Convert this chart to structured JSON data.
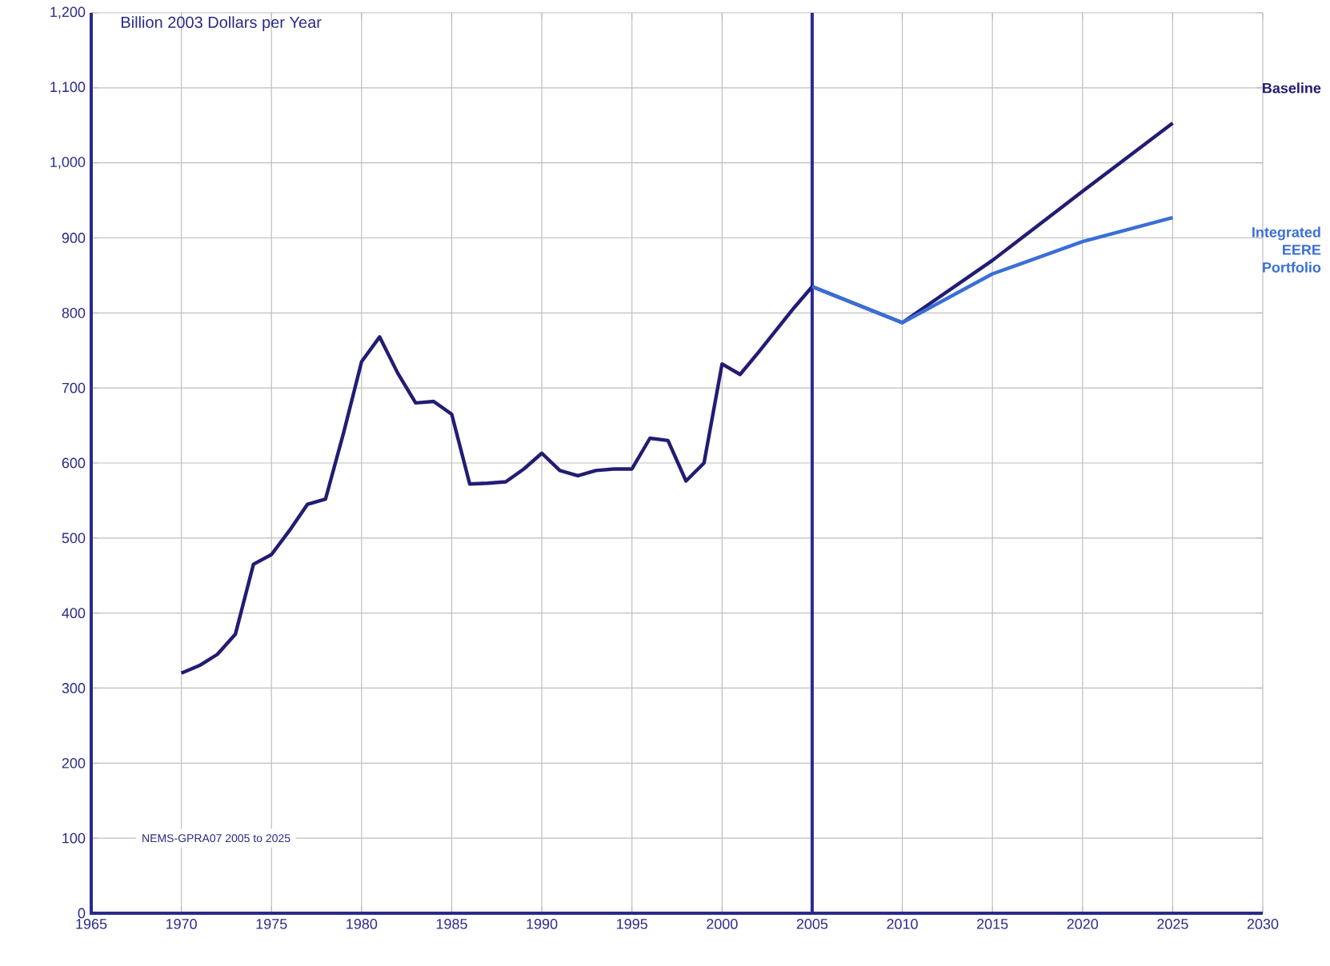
{
  "chart_data": {
    "type": "line",
    "ylabel": "Billion 2003 Dollars per Year",
    "xlim": [
      1965,
      2030
    ],
    "xticks": [
      1965,
      1970,
      1975,
      1980,
      1985,
      1990,
      1995,
      2000,
      2005,
      2010,
      2015,
      2020,
      2025,
      2030
    ],
    "ylim": [
      0,
      1200
    ],
    "yticks": [
      0,
      100,
      200,
      300,
      400,
      500,
      600,
      700,
      800,
      900,
      {
        "value": 1000,
        "label": "1,000"
      },
      {
        "value": 1100,
        "label": "1,100"
      },
      {
        "value": 1200,
        "label": "1,200"
      }
    ],
    "grid": true,
    "marker": "none",
    "line_style": "solid",
    "series": [
      {
        "name": "Baseline",
        "color": "#221c74",
        "x": [
          1970,
          1971,
          1972,
          1973,
          1974,
          1975,
          1976,
          1977,
          1978,
          1979,
          1980,
          1981,
          1982,
          1983,
          1984,
          1985,
          1986,
          1987,
          1988,
          1989,
          1990,
          1991,
          1992,
          1993,
          1994,
          1995,
          1996,
          1997,
          1998,
          1999,
          2000,
          2001,
          2002,
          2003,
          2004,
          2005,
          2010,
          2015,
          2020,
          2025
        ],
        "values": [
          320,
          330,
          345,
          372,
          465,
          478,
          510,
          545,
          552,
          640,
          735,
          768,
          720,
          680,
          682,
          665,
          572,
          573,
          575,
          592,
          613,
          590,
          583,
          590,
          592,
          592,
          633,
          630,
          576,
          600,
          732,
          718,
          747,
          777,
          807,
          835,
          787,
          870,
          962,
          1053
        ]
      },
      {
        "name": "Integrated EERE Portfolio",
        "color": "#3a6fd8",
        "x": [
          2005,
          2010,
          2015,
          2020,
          2025
        ],
        "values": [
          835,
          787,
          852,
          895,
          927
        ]
      }
    ],
    "ref_lines": [
      {
        "axis": "x",
        "value": 2005,
        "color": "#2a2a9a"
      }
    ],
    "annotations": [
      "NEMS-GPRA07 2005 to 2025"
    ]
  }
}
